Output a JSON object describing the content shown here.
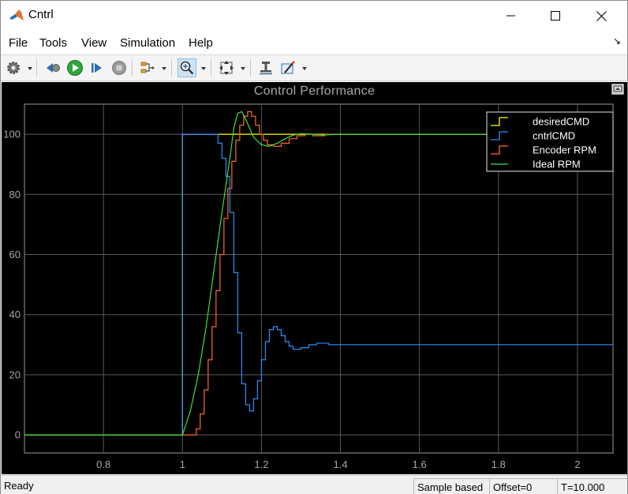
{
  "window": {
    "title": "Cntrl",
    "minimize_glyph": "—",
    "maximize_glyph": "☐",
    "close_glyph": "✕"
  },
  "menu": {
    "items": [
      "File",
      "Tools",
      "View",
      "Simulation",
      "Help"
    ],
    "pin_glyph": "↘"
  },
  "toolbar": {
    "icons": [
      "gear-icon",
      "step-back-icon",
      "run-icon",
      "step-forward-icon",
      "stop-icon",
      "signal-selector-icon",
      "zoom-in-icon",
      "fit-to-view-icon",
      "cursor-measurements-icon",
      "style-icon"
    ],
    "active": "zoom-in-icon"
  },
  "scope": {
    "title": "Control  Performance",
    "colors": {
      "background": "#000000",
      "grid": "#5a5a5a",
      "ticks": "#a6a6a6",
      "desiredCMD": "#ffff00",
      "cntrlCMD": "#2b8fff",
      "Encoder RPM": "#ff6a2a",
      "Ideal RPM": "#3ee13e"
    }
  },
  "chart_data": {
    "type": "line",
    "title": "Control  Performance",
    "xlabel": "",
    "ylabel": "",
    "xlim": [
      0.6,
      2.09
    ],
    "ylim": [
      -6,
      110
    ],
    "xticks": [
      0.8,
      1,
      1.2,
      1.4,
      1.6,
      1.8,
      2
    ],
    "yticks": [
      0,
      20,
      40,
      60,
      80,
      100
    ],
    "grid": true,
    "legend_position": "top-right",
    "series": [
      {
        "name": "desiredCMD",
        "step": true,
        "points": [
          [
            0.6,
            0
          ],
          [
            1.0,
            0
          ],
          [
            1.0,
            100
          ],
          [
            2.09,
            100
          ]
        ]
      },
      {
        "name": "cntrlCMD",
        "step": true,
        "points": [
          [
            0.6,
            0
          ],
          [
            1.0,
            0
          ],
          [
            1.0,
            100
          ],
          [
            1.09,
            100
          ],
          [
            1.09,
            97
          ],
          [
            1.1,
            97
          ],
          [
            1.1,
            92
          ],
          [
            1.11,
            92
          ],
          [
            1.11,
            86
          ],
          [
            1.12,
            86
          ],
          [
            1.12,
            74
          ],
          [
            1.13,
            74
          ],
          [
            1.13,
            54
          ],
          [
            1.14,
            54
          ],
          [
            1.14,
            34
          ],
          [
            1.15,
            34
          ],
          [
            1.15,
            17
          ],
          [
            1.16,
            17
          ],
          [
            1.16,
            10
          ],
          [
            1.17,
            10
          ],
          [
            1.17,
            8
          ],
          [
            1.18,
            8
          ],
          [
            1.18,
            12
          ],
          [
            1.19,
            12
          ],
          [
            1.19,
            18
          ],
          [
            1.2,
            18
          ],
          [
            1.2,
            25
          ],
          [
            1.21,
            25
          ],
          [
            1.21,
            31
          ],
          [
            1.22,
            31
          ],
          [
            1.22,
            35
          ],
          [
            1.23,
            35
          ],
          [
            1.23,
            36
          ],
          [
            1.24,
            36
          ],
          [
            1.24,
            35
          ],
          [
            1.25,
            35
          ],
          [
            1.25,
            33
          ],
          [
            1.26,
            33
          ],
          [
            1.26,
            31
          ],
          [
            1.27,
            31
          ],
          [
            1.27,
            29.5
          ],
          [
            1.28,
            29.5
          ],
          [
            1.28,
            28.5
          ],
          [
            1.3,
            28.5
          ],
          [
            1.3,
            29
          ],
          [
            1.32,
            29
          ],
          [
            1.32,
            30
          ],
          [
            1.34,
            30
          ],
          [
            1.34,
            30.5
          ],
          [
            1.37,
            30.5
          ],
          [
            1.37,
            30
          ],
          [
            2.09,
            30
          ]
        ]
      },
      {
        "name": "Encoder RPM",
        "step": true,
        "points": [
          [
            0.6,
            0
          ],
          [
            1.035,
            0
          ],
          [
            1.035,
            2
          ],
          [
            1.045,
            2
          ],
          [
            1.045,
            7
          ],
          [
            1.055,
            7
          ],
          [
            1.055,
            15
          ],
          [
            1.065,
            15
          ],
          [
            1.065,
            25
          ],
          [
            1.075,
            25
          ],
          [
            1.075,
            36
          ],
          [
            1.085,
            36
          ],
          [
            1.085,
            48
          ],
          [
            1.095,
            48
          ],
          [
            1.095,
            60
          ],
          [
            1.105,
            60
          ],
          [
            1.105,
            72
          ],
          [
            1.115,
            72
          ],
          [
            1.115,
            82
          ],
          [
            1.125,
            82
          ],
          [
            1.125,
            91
          ],
          [
            1.135,
            91
          ],
          [
            1.135,
            98
          ],
          [
            1.145,
            98
          ],
          [
            1.145,
            103
          ],
          [
            1.155,
            103
          ],
          [
            1.155,
            106
          ],
          [
            1.165,
            106
          ],
          [
            1.165,
            107.5
          ],
          [
            1.175,
            107.5
          ],
          [
            1.175,
            106
          ],
          [
            1.185,
            106
          ],
          [
            1.185,
            103
          ],
          [
            1.195,
            103
          ],
          [
            1.195,
            100
          ],
          [
            1.205,
            100
          ],
          [
            1.205,
            98
          ],
          [
            1.215,
            98
          ],
          [
            1.215,
            96.5
          ],
          [
            1.23,
            96.5
          ],
          [
            1.23,
            96
          ],
          [
            1.25,
            96
          ],
          [
            1.25,
            97
          ],
          [
            1.27,
            97
          ],
          [
            1.27,
            98.5
          ],
          [
            1.29,
            98.5
          ],
          [
            1.29,
            99.5
          ],
          [
            1.31,
            99.5
          ],
          [
            1.31,
            100
          ],
          [
            1.33,
            100
          ],
          [
            1.33,
            99.5
          ],
          [
            1.36,
            99.5
          ],
          [
            1.36,
            100
          ],
          [
            2.09,
            100
          ]
        ]
      },
      {
        "name": "Ideal RPM",
        "step": false,
        "points": [
          [
            0.6,
            0
          ],
          [
            1.0,
            0
          ],
          [
            1.02,
            8
          ],
          [
            1.04,
            20
          ],
          [
            1.06,
            36
          ],
          [
            1.08,
            55
          ],
          [
            1.1,
            74
          ],
          [
            1.12,
            92
          ],
          [
            1.13,
            102
          ],
          [
            1.14,
            107
          ],
          [
            1.15,
            107.5
          ],
          [
            1.16,
            105
          ],
          [
            1.17,
            102
          ],
          [
            1.18,
            99
          ],
          [
            1.2,
            96.5
          ],
          [
            1.22,
            96
          ],
          [
            1.24,
            97
          ],
          [
            1.26,
            98.5
          ],
          [
            1.28,
            99.7
          ],
          [
            1.3,
            100.2
          ],
          [
            1.33,
            100
          ],
          [
            1.36,
            99.8
          ],
          [
            1.4,
            100
          ],
          [
            2.09,
            100
          ]
        ]
      }
    ]
  },
  "status": {
    "ready": "Ready",
    "sample": "Sample based",
    "offset": "Offset=0",
    "time": "T=10.000"
  }
}
